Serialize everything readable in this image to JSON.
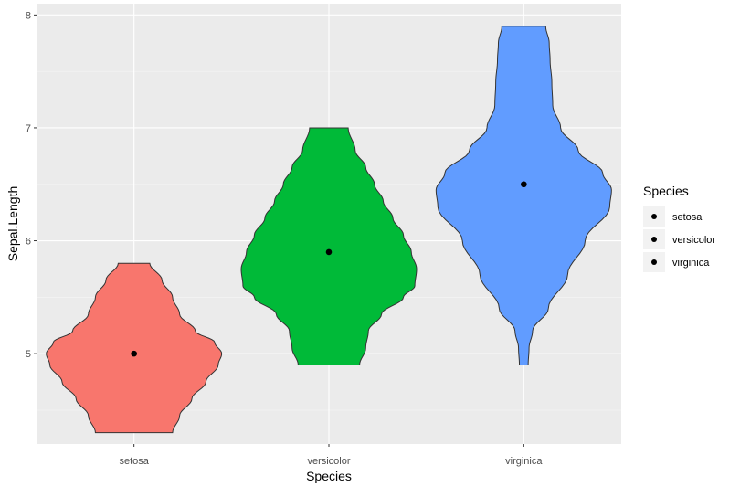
{
  "chart_data": {
    "type": "violin",
    "xlabel": "Species",
    "ylabel": "Sepal.Length",
    "categories": [
      "setosa",
      "versicolor",
      "virginica"
    ],
    "ylim": [
      4.2,
      8.1
    ],
    "yticks": [
      "5",
      "6",
      "7",
      "8"
    ],
    "grid": true,
    "legend": {
      "title": "Species",
      "position": "right",
      "entries": [
        "setosa",
        "versicolor",
        "virginica"
      ]
    },
    "series": [
      {
        "category": "setosa",
        "color": "#F8766D",
        "mean": 5.0,
        "profile": [
          [
            4.3,
            0.44
          ],
          [
            4.45,
            0.52
          ],
          [
            4.6,
            0.66
          ],
          [
            4.75,
            0.82
          ],
          [
            4.9,
            0.96
          ],
          [
            5.0,
            1.0
          ],
          [
            5.1,
            0.92
          ],
          [
            5.2,
            0.7
          ],
          [
            5.35,
            0.52
          ],
          [
            5.5,
            0.44
          ],
          [
            5.65,
            0.32
          ],
          [
            5.8,
            0.18
          ]
        ]
      },
      {
        "category": "versicolor",
        "color": "#00BA38",
        "mean": 5.9,
        "profile": [
          [
            4.9,
            0.35
          ],
          [
            5.05,
            0.42
          ],
          [
            5.2,
            0.45
          ],
          [
            5.35,
            0.6
          ],
          [
            5.5,
            0.85
          ],
          [
            5.6,
            0.98
          ],
          [
            5.75,
            1.0
          ],
          [
            5.9,
            0.94
          ],
          [
            6.05,
            0.85
          ],
          [
            6.2,
            0.73
          ],
          [
            6.35,
            0.62
          ],
          [
            6.5,
            0.52
          ],
          [
            6.65,
            0.42
          ],
          [
            6.8,
            0.3
          ],
          [
            7.0,
            0.22
          ]
        ]
      },
      {
        "category": "virginica",
        "color": "#619CFF",
        "mean": 6.5,
        "profile": [
          [
            4.9,
            0.05
          ],
          [
            5.05,
            0.06
          ],
          [
            5.2,
            0.1
          ],
          [
            5.4,
            0.28
          ],
          [
            5.7,
            0.5
          ],
          [
            6.0,
            0.7
          ],
          [
            6.3,
            0.98
          ],
          [
            6.45,
            1.0
          ],
          [
            6.6,
            0.9
          ],
          [
            6.8,
            0.62
          ],
          [
            7.0,
            0.42
          ],
          [
            7.2,
            0.33
          ],
          [
            7.4,
            0.32
          ],
          [
            7.6,
            0.3
          ],
          [
            7.75,
            0.29
          ],
          [
            7.9,
            0.25
          ]
        ]
      }
    ]
  }
}
